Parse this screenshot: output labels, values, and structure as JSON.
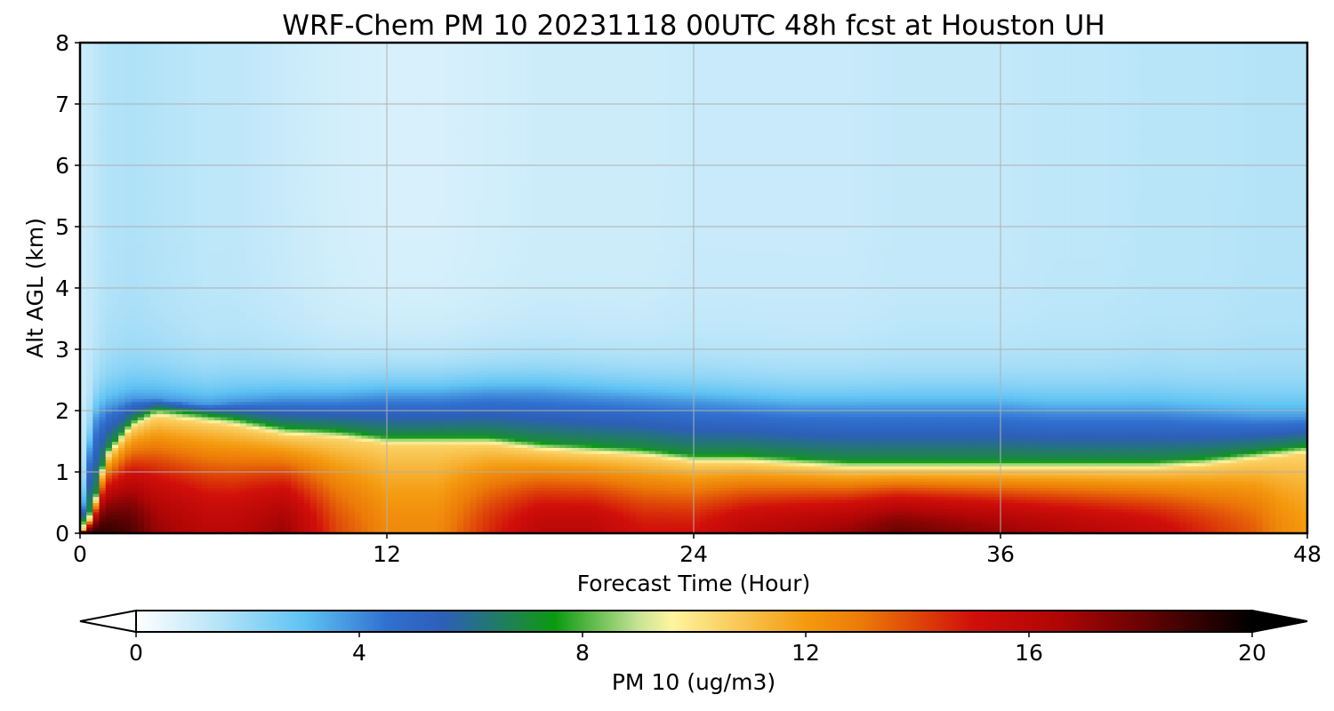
{
  "chart_data": {
    "type": "heatmap",
    "title": "WRF-Chem PM 10  20231118 00UTC 48h fcst at Houston UH",
    "xlabel": "Forecast Time (Hour)",
    "ylabel": "Alt AGL (km)",
    "xlim": [
      0,
      48
    ],
    "ylim": [
      0,
      8
    ],
    "xticks": [
      0,
      12,
      24,
      36,
      48
    ],
    "yticks": [
      0,
      1,
      2,
      3,
      4,
      5,
      6,
      7,
      8
    ],
    "grid": true,
    "colorbar": {
      "label": "PM 10  (ug/m3)",
      "range": [
        0,
        20
      ],
      "ticks": [
        0,
        4,
        8,
        12,
        16,
        20
      ],
      "extend": "both",
      "orientation": "horizontal",
      "stops": [
        {
          "v": 0,
          "c": "#ffffff"
        },
        {
          "v": 1.5,
          "c": "#b4e3f8"
        },
        {
          "v": 3,
          "c": "#5fc3f3"
        },
        {
          "v": 4.5,
          "c": "#3070cf"
        },
        {
          "v": 5.5,
          "c": "#2d5fb8"
        },
        {
          "v": 7,
          "c": "#1a8a3a"
        },
        {
          "v": 7.5,
          "c": "#0a9a10"
        },
        {
          "v": 9,
          "c": "#c7e395"
        },
        {
          "v": 9.6,
          "c": "#fff5a0"
        },
        {
          "v": 11,
          "c": "#f8c049"
        },
        {
          "v": 12,
          "c": "#f49a0f"
        },
        {
          "v": 13,
          "c": "#ec7a08"
        },
        {
          "v": 15,
          "c": "#d10f0a"
        },
        {
          "v": 16.5,
          "c": "#b00606"
        },
        {
          "v": 18,
          "c": "#6a0303"
        },
        {
          "v": 20,
          "c": "#000000"
        }
      ]
    },
    "time_hours": [
      0,
      0.5,
      1,
      2,
      3,
      4,
      5,
      6,
      8,
      10,
      12,
      14,
      16,
      18,
      20,
      22,
      24,
      26,
      28,
      30,
      32,
      34,
      36,
      38,
      40,
      42,
      44,
      46,
      47,
      48
    ],
    "surface_pm10": [
      18.5,
      19,
      19,
      18.5,
      17,
      16.5,
      16,
      16,
      17,
      14,
      12.5,
      12.5,
      14.5,
      16,
      16,
      15,
      15,
      16,
      16.5,
      17,
      18,
      17.5,
      17,
      16.5,
      16,
      15.5,
      14.5,
      13.5,
      12.5,
      12
    ],
    "mixed_layer_top_km": [
      0,
      0.3,
      1.2,
      1.7,
      1.9,
      1.85,
      1.8,
      1.75,
      1.6,
      1.55,
      1.45,
      1.45,
      1.45,
      1.35,
      1.3,
      1.25,
      1.15,
      1.15,
      1.1,
      1.05,
      1.05,
      1.05,
      1.05,
      1.05,
      1.05,
      1.05,
      1.1,
      1.2,
      1.25,
      1.3
    ],
    "blue_layer_top_km": [
      0,
      1.8,
      2.05,
      2.2,
      2.2,
      2.15,
      2.1,
      2.15,
      2.2,
      2.2,
      2.25,
      2.25,
      2.3,
      2.3,
      2.25,
      2.2,
      2.15,
      2.1,
      2.05,
      2.05,
      2.05,
      2.05,
      2.05,
      2.0,
      2.0,
      2.0,
      1.95,
      1.9,
      1.9,
      1.9
    ],
    "background_aloft_pm10": [
      1.0,
      1.2,
      1.5,
      1.6,
      1.5,
      1.4,
      1.3,
      1.3,
      1.1,
      0.9,
      0.8,
      0.8,
      0.9,
      1.0,
      1.0,
      1.0,
      1.1,
      1.1,
      1.1,
      1.1,
      1.2,
      1.2,
      1.2,
      1.3,
      1.3,
      1.4,
      1.4,
      1.5,
      1.5,
      1.5
    ]
  }
}
